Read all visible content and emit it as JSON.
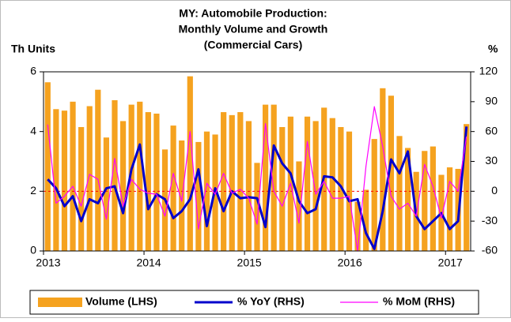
{
  "chart_data": {
    "type": "bar_line",
    "title": [
      "MY: Automobile Production:",
      "Monthly Volume and Growth",
      "(Commercial Cars)"
    ],
    "ylabel": "Th Units",
    "y2label": "%",
    "categories": [
      "2013",
      null,
      null,
      null,
      null,
      null,
      null,
      null,
      null,
      null,
      null,
      null,
      "2014",
      null,
      null,
      null,
      null,
      null,
      null,
      null,
      null,
      null,
      null,
      null,
      "2015",
      null,
      null,
      null,
      null,
      null,
      null,
      null,
      null,
      null,
      null,
      null,
      "2016",
      null,
      null,
      null,
      null,
      null,
      null,
      null,
      null,
      null,
      null,
      null,
      "2017",
      null,
      null
    ],
    "series": [
      {
        "name": "Volume (LHS)",
        "kind": "bar",
        "color": "#f5a21f",
        "values": [
          5.65,
          4.75,
          4.7,
          5.0,
          4.15,
          4.85,
          5.4,
          3.8,
          5.05,
          4.35,
          4.9,
          5.0,
          4.65,
          4.6,
          3.4,
          4.2,
          3.7,
          5.85,
          3.65,
          4.0,
          3.9,
          4.65,
          4.55,
          4.65,
          4.35,
          2.95,
          4.9,
          4.9,
          4.15,
          4.5,
          3.0,
          4.5,
          4.35,
          4.8,
          4.45,
          4.15,
          4.0,
          1.65,
          2.05,
          3.75,
          5.45,
          5.2,
          3.85,
          3.45,
          2.65,
          3.35,
          3.5,
          2.55,
          2.8,
          2.75,
          4.25
        ]
      },
      {
        "name": "% YoY (RHS)",
        "kind": "line",
        "axis": "y2",
        "color": "#0000cc",
        "values": [
          12,
          3,
          -15,
          -5,
          -30,
          -8,
          -12,
          3,
          5,
          -22,
          22,
          47,
          -18,
          -3,
          -8,
          -27,
          -20,
          -8,
          22,
          -35,
          3,
          -20,
          0,
          -7,
          -6,
          -7,
          -36,
          46,
          28,
          18,
          -10,
          -22,
          -18,
          15,
          14,
          5,
          -10,
          -8,
          -42,
          -58,
          -20,
          32,
          18,
          40,
          -25,
          -38,
          -30,
          -22,
          -38,
          -30,
          65
        ]
      },
      {
        "name": "% MoM (RHS)",
        "kind": "line",
        "axis": "y2",
        "color": "#ff00ff",
        "values": [
          67,
          -12,
          -5,
          5,
          -15,
          17,
          12,
          -28,
          33,
          -15,
          12,
          2,
          -2,
          -3,
          -25,
          18,
          -10,
          60,
          -38,
          8,
          -3,
          18,
          -2,
          2,
          -7,
          -33,
          68,
          0,
          -15,
          8,
          -32,
          50,
          -3,
          10,
          -7,
          -7,
          -5,
          -60,
          25,
          85,
          45,
          -5,
          -18,
          -12,
          -25,
          27,
          5,
          -27,
          10,
          0,
          55
        ]
      }
    ],
    "ylim": [
      0,
      6
    ],
    "yticks": [
      0,
      2,
      4,
      6
    ],
    "y2lim": [
      -60,
      120
    ],
    "y2ticks": [
      -60,
      -30,
      0,
      30,
      60,
      90,
      120
    ],
    "zero_line": {
      "axis": "y2",
      "color": "#ff0000"
    },
    "legend": "bottom"
  }
}
